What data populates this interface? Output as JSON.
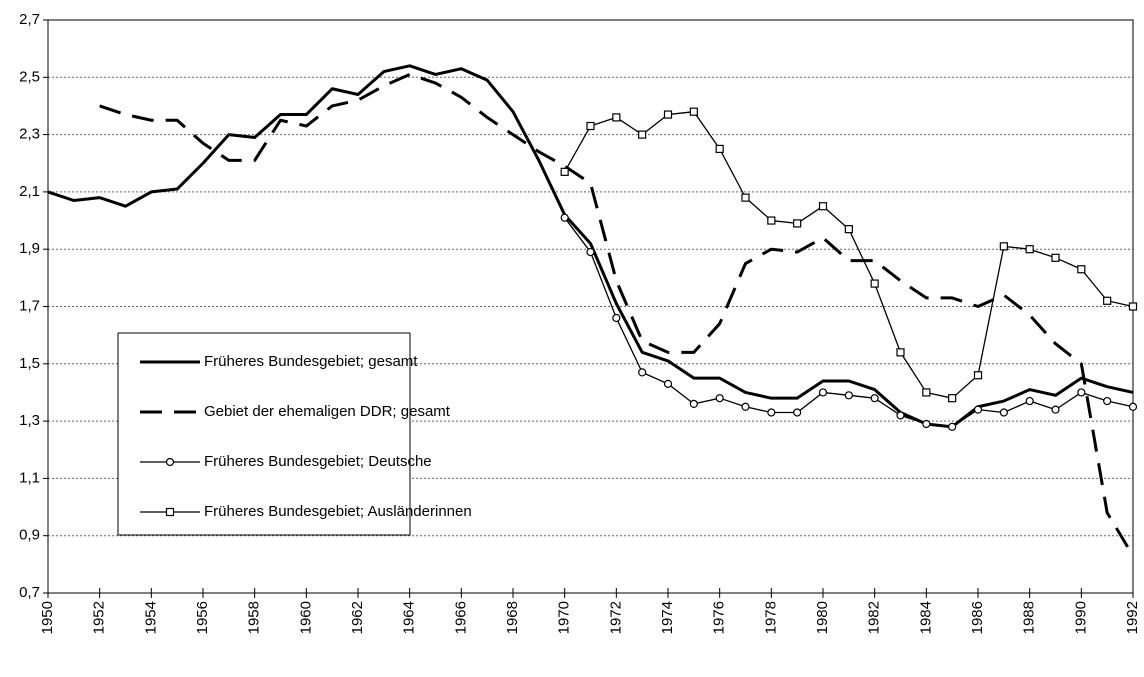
{
  "chart_data": {
    "type": "line",
    "x": [
      1950,
      1951,
      1952,
      1953,
      1954,
      1955,
      1956,
      1957,
      1958,
      1959,
      1960,
      1961,
      1962,
      1963,
      1964,
      1965,
      1966,
      1967,
      1968,
      1969,
      1970,
      1971,
      1972,
      1973,
      1974,
      1975,
      1976,
      1977,
      1978,
      1979,
      1980,
      1981,
      1982,
      1983,
      1984,
      1985,
      1986,
      1987,
      1988,
      1989,
      1990,
      1991,
      1992
    ],
    "xlim": [
      1950,
      1992
    ],
    "xticks": [
      1950,
      1952,
      1954,
      1956,
      1958,
      1960,
      1962,
      1964,
      1966,
      1968,
      1970,
      1972,
      1974,
      1976,
      1978,
      1980,
      1982,
      1984,
      1986,
      1988,
      1990,
      1992
    ],
    "ylim": [
      0.7,
      2.7
    ],
    "yticks": [
      {
        "value": 0.7,
        "label": "0,7"
      },
      {
        "value": 0.9,
        "label": "0,9"
      },
      {
        "value": 1.1,
        "label": "1,1"
      },
      {
        "value": 1.3,
        "label": "1,3"
      },
      {
        "value": 1.5,
        "label": "1,5"
      },
      {
        "value": 1.7,
        "label": "1,7"
      },
      {
        "value": 1.9,
        "label": "1,9"
      },
      {
        "value": 2.1,
        "label": "2,1"
      },
      {
        "value": 2.3,
        "label": "2,3"
      },
      {
        "value": 2.5,
        "label": "2,5"
      },
      {
        "value": 2.7,
        "label": "2,7"
      }
    ],
    "grid": true,
    "series": [
      {
        "name": "Früheres Bundesgebiet; gesamt",
        "color": "#000000",
        "style": "thick",
        "values": [
          2.1,
          2.07,
          2.08,
          2.05,
          2.1,
          2.11,
          2.2,
          2.3,
          2.29,
          2.37,
          2.37,
          2.46,
          2.44,
          2.52,
          2.54,
          2.51,
          2.53,
          2.49,
          2.38,
          2.21,
          2.02,
          1.92,
          1.71,
          1.54,
          1.51,
          1.45,
          1.45,
          1.4,
          1.38,
          1.38,
          1.44,
          1.44,
          1.41,
          1.33,
          1.29,
          1.28,
          1.35,
          1.37,
          1.41,
          1.39,
          1.45,
          1.42,
          1.4
        ]
      },
      {
        "name": "Gebiet der ehemaligen DDR; gesamt",
        "color": "#000000",
        "style": "dashed",
        "values": [
          null,
          null,
          2.4,
          2.37,
          2.35,
          2.35,
          2.27,
          2.21,
          2.21,
          2.35,
          2.33,
          2.4,
          2.42,
          2.47,
          2.51,
          2.48,
          2.43,
          2.36,
          2.3,
          2.24,
          2.19,
          2.13,
          1.79,
          1.58,
          1.54,
          1.54,
          1.64,
          1.85,
          1.9,
          1.89,
          1.94,
          1.86,
          1.86,
          1.79,
          1.73,
          1.73,
          1.7,
          1.74,
          1.67,
          1.57,
          1.5,
          0.98,
          0.83
        ]
      },
      {
        "name": "Früheres Bundesgebiet; Deutsche",
        "color": "#000000",
        "style": "circle",
        "values": [
          null,
          null,
          null,
          null,
          null,
          null,
          null,
          null,
          null,
          null,
          null,
          null,
          null,
          null,
          null,
          null,
          null,
          null,
          null,
          null,
          2.01,
          1.89,
          1.66,
          1.47,
          1.43,
          1.36,
          1.38,
          1.35,
          1.33,
          1.33,
          1.4,
          1.39,
          1.38,
          1.32,
          1.29,
          1.28,
          1.34,
          1.33,
          1.37,
          1.34,
          1.4,
          1.37,
          1.35
        ]
      },
      {
        "name": "Früheres Bundesgebiet; Ausländerinnen",
        "color": "#000000",
        "style": "square",
        "values": [
          null,
          null,
          null,
          null,
          null,
          null,
          null,
          null,
          null,
          null,
          null,
          null,
          null,
          null,
          null,
          null,
          null,
          null,
          null,
          null,
          2.17,
          2.33,
          2.36,
          2.3,
          2.37,
          2.38,
          2.25,
          2.08,
          2.0,
          1.99,
          2.05,
          1.97,
          1.78,
          1.54,
          1.4,
          1.38,
          1.46,
          1.91,
          1.9,
          1.87,
          1.83,
          1.72,
          1.7
        ]
      }
    ]
  }
}
